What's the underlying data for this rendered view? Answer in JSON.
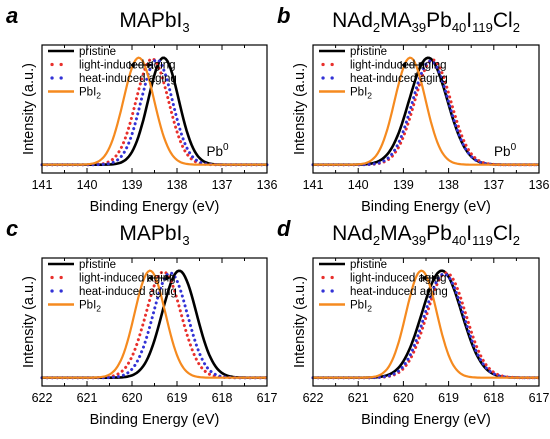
{
  "colors": {
    "pristine": "#000000",
    "light": "#e8302c",
    "heat": "#3232d6",
    "pbi2": "#f58a1f",
    "frame": "#000000"
  },
  "chart_data": [
    {
      "panel": "a",
      "type": "line",
      "title": "MAPbI",
      "title_sub": "3",
      "xlabel": "Binding Energy (eV)",
      "ylabel": "Intensity (a.u.)",
      "xlim": [
        141,
        136
      ],
      "xticks": [
        "141",
        "140",
        "139",
        "138",
        "137",
        "136"
      ],
      "annotation": {
        "text": "Pb",
        "sup": "0",
        "x": 137.1
      },
      "arrow": {
        "from": 138.55,
        "to": 139.05
      },
      "series": [
        {
          "name": "pristine",
          "style": "solid",
          "center": 138.3,
          "width": 0.34,
          "amp": 1.0
        },
        {
          "name": "light-induced aging",
          "style": "dotted",
          "center": 138.55,
          "width": 0.36,
          "amp": 0.99
        },
        {
          "name": "heat-induced aging",
          "style": "dotted",
          "center": 138.45,
          "width": 0.35,
          "amp": 0.98
        },
        {
          "name": "PbI",
          "name_sub": "2",
          "style": "solid",
          "center": 138.85,
          "width": 0.34,
          "amp": 1.0
        }
      ]
    },
    {
      "panel": "b",
      "type": "line",
      "title": "NAd2MA39Pb40I119Cl2",
      "title_parts": [
        [
          "NAd",
          ""
        ],
        [
          "2",
          "sub"
        ],
        [
          "MA",
          ""
        ],
        [
          "39",
          "sub"
        ],
        [
          "Pb",
          ""
        ],
        [
          "40",
          "sub"
        ],
        [
          "I",
          ""
        ],
        [
          "119",
          "sub"
        ],
        [
          "Cl",
          ""
        ],
        [
          "2",
          "sub"
        ]
      ],
      "xlabel": "Binding Energy (eV)",
      "ylabel": "Intensity (a.u.)",
      "xlim": [
        141,
        136
      ],
      "xticks": [
        "141",
        "140",
        "139",
        "138",
        "137",
        "136"
      ],
      "annotation": {
        "text": "Pb",
        "sup": "0",
        "x": 136.75
      },
      "arrow": {
        "from": 138.55,
        "to": 139.05
      },
      "series": [
        {
          "name": "pristine",
          "style": "solid",
          "center": 138.45,
          "width": 0.42,
          "amp": 1.0
        },
        {
          "name": "light-induced aging",
          "style": "dotted",
          "center": 138.35,
          "width": 0.4,
          "amp": 0.98
        },
        {
          "name": "heat-induced aging",
          "style": "dotted",
          "center": 138.4,
          "width": 0.4,
          "amp": 0.97
        },
        {
          "name": "PbI",
          "name_sub": "2",
          "style": "solid",
          "center": 138.85,
          "width": 0.34,
          "amp": 1.0
        }
      ]
    },
    {
      "panel": "c",
      "type": "line",
      "title": "MAPbI",
      "title_sub": "3",
      "xlabel": "Binding Energy (eV)",
      "ylabel": "Intensity (a.u.)",
      "xlim": [
        622,
        617
      ],
      "xticks": [
        "622",
        "621",
        "620",
        "619",
        "618",
        "617"
      ],
      "arrow": {
        "from": 619.15,
        "to": 619.65
      },
      "series": [
        {
          "name": "pristine",
          "style": "solid",
          "center": 618.95,
          "width": 0.38,
          "amp": 1.0
        },
        {
          "name": "light-induced aging",
          "style": "dotted",
          "center": 619.3,
          "width": 0.39,
          "amp": 0.99
        },
        {
          "name": "heat-induced aging",
          "style": "dotted",
          "center": 619.15,
          "width": 0.38,
          "amp": 0.98
        },
        {
          "name": "PbI",
          "name_sub": "2",
          "style": "solid",
          "center": 619.6,
          "width": 0.34,
          "amp": 1.0
        }
      ]
    },
    {
      "panel": "d",
      "type": "line",
      "title": "NAd2MA39Pb40I119Cl2",
      "title_parts": [
        [
          "NAd",
          ""
        ],
        [
          "2",
          "sub"
        ],
        [
          "MA",
          ""
        ],
        [
          "39",
          "sub"
        ],
        [
          "Pb",
          ""
        ],
        [
          "40",
          "sub"
        ],
        [
          "I",
          ""
        ],
        [
          "119",
          "sub"
        ],
        [
          "Cl",
          ""
        ],
        [
          "2",
          "sub"
        ]
      ],
      "xlabel": "Binding Energy (eV)",
      "ylabel": "Intensity (a.u.)",
      "xlim": [
        622,
        617
      ],
      "xticks": [
        "622",
        "621",
        "620",
        "619",
        "618",
        "617"
      ],
      "arrow": {
        "from": 619.25,
        "to": 619.6
      },
      "series": [
        {
          "name": "pristine",
          "style": "solid",
          "center": 619.15,
          "width": 0.44,
          "amp": 1.0
        },
        {
          "name": "light-induced aging",
          "style": "dotted",
          "center": 619.05,
          "width": 0.43,
          "amp": 0.98
        },
        {
          "name": "heat-induced aging",
          "style": "dotted",
          "center": 619.1,
          "width": 0.43,
          "amp": 0.97
        },
        {
          "name": "PbI",
          "name_sub": "2",
          "style": "solid",
          "center": 619.6,
          "width": 0.34,
          "amp": 1.0
        }
      ]
    }
  ]
}
